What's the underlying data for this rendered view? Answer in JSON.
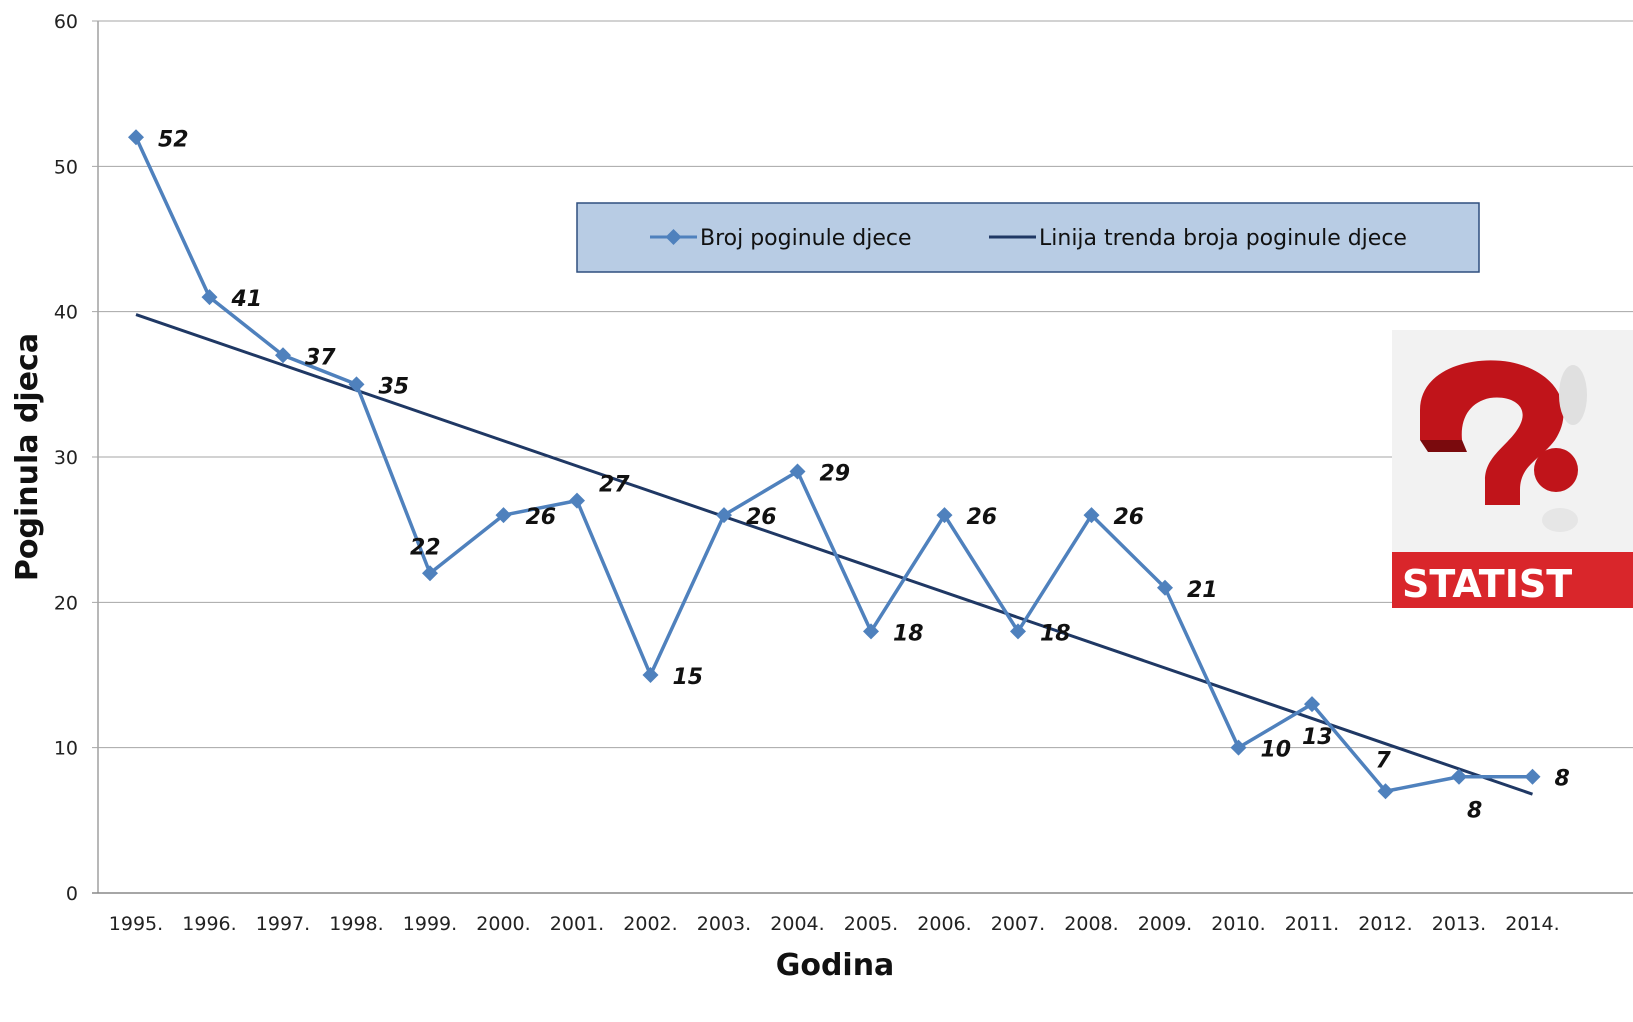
{
  "chart_data": {
    "type": "line",
    "title": "",
    "xlabel": "Godina",
    "ylabel": "Poginula djeca",
    "ylim": [
      0,
      60
    ],
    "yticks": [
      0,
      10,
      20,
      30,
      40,
      50,
      60
    ],
    "grid": true,
    "legend_position": "top-center",
    "categories": [
      "1995.",
      "1996.",
      "1997.",
      "1998.",
      "1999.",
      "2000.",
      "2001.",
      "2002.",
      "2003.",
      "2004.",
      "2005.",
      "2006.",
      "2007.",
      "2008.",
      "2009.",
      "2010.",
      "2011.",
      "2012.",
      "2013.",
      "2014."
    ],
    "series": [
      {
        "name": "Broj poginule djece",
        "color": "#4f81bd",
        "marker": "diamond",
        "values": [
          52,
          41,
          37,
          35,
          22,
          26,
          27,
          15,
          26,
          29,
          18,
          26,
          18,
          26,
          21,
          10,
          13,
          7,
          8,
          8
        ]
      },
      {
        "name": "Linija trenda broja poginule djece",
        "color": "#1f3864",
        "type": "trendline",
        "start": 39.8,
        "end": 6.8
      }
    ]
  },
  "decoration": {
    "badge_text": "STATIST",
    "badge_color": "#d9262b",
    "icon": "question-mark-icon"
  }
}
